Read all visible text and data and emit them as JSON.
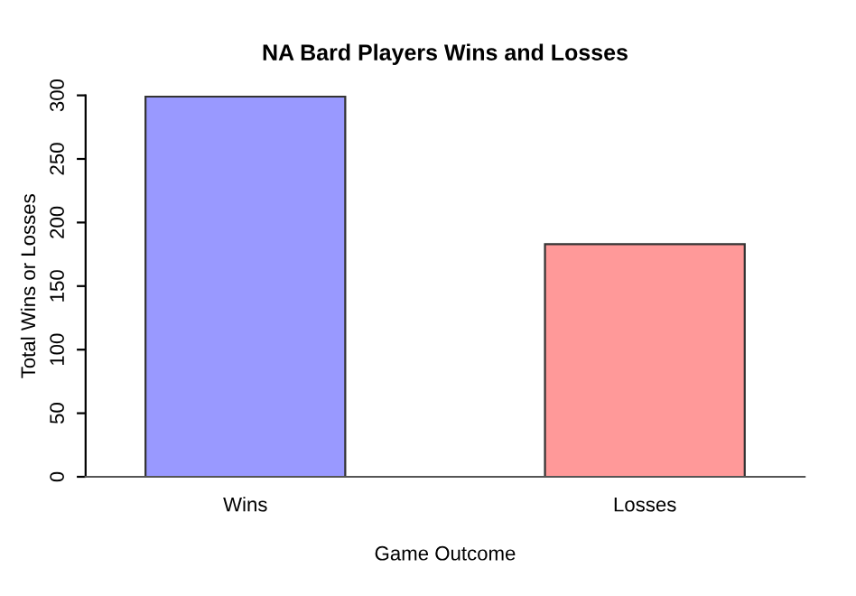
{
  "chart_data": {
    "type": "bar",
    "title": "NA Bard Players Wins and Losses",
    "xlabel": "Game Outcome",
    "ylabel": "Total Wins or Losses",
    "categories": [
      "Wins",
      "Losses"
    ],
    "values": [
      299,
      183
    ],
    "colors": [
      "#9999ff",
      "#ff9999"
    ],
    "ylim": [
      0,
      300
    ],
    "yticks": [
      0,
      50,
      100,
      150,
      200,
      250,
      300
    ],
    "grid": false,
    "legend": false
  }
}
